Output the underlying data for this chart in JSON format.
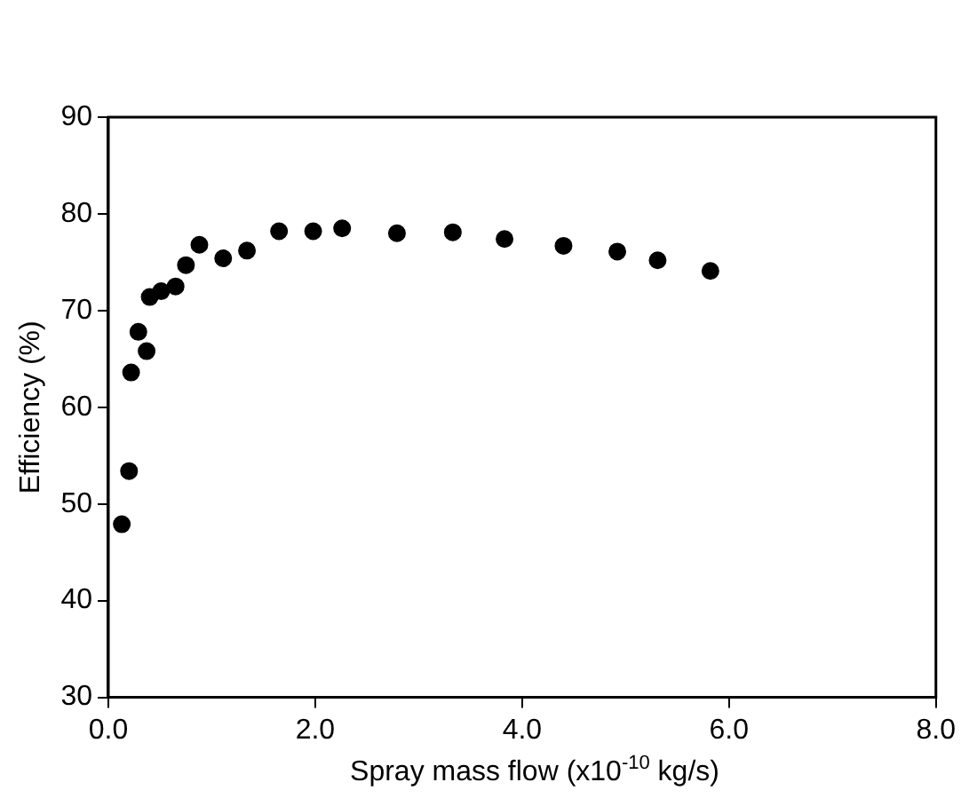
{
  "chart_data": {
    "type": "scatter",
    "xlabel": "Spray mass flow (x10$^{-10}$ kg/s)",
    "ylabel": "Efficiency (%)",
    "xlim": [
      0,
      8
    ],
    "xticks": [
      {
        "value": 0,
        "label": "0.0"
      },
      {
        "value": 2,
        "label": "2.0"
      },
      {
        "value": 4,
        "label": "4.0"
      },
      {
        "value": 6,
        "label": "6.0"
      },
      {
        "value": 8,
        "label": "8.0"
      }
    ],
    "ylim": [
      30,
      90
    ],
    "yticks": [
      30,
      40,
      50,
      60,
      70,
      80,
      90
    ],
    "grid": false,
    "legend": false,
    "marker": "circle",
    "series": [
      {
        "color": "#000000",
        "x": [
          0.13,
          0.2,
          0.22,
          0.29,
          0.37,
          0.4,
          0.51,
          0.65,
          0.75,
          0.88,
          1.11,
          1.34,
          1.65,
          1.98,
          2.26,
          2.79,
          3.33,
          3.83,
          4.4,
          4.92,
          5.31,
          5.82
        ],
        "values": [
          47.9,
          53.4,
          63.6,
          67.8,
          65.8,
          71.4,
          72.0,
          72.5,
          74.7,
          76.8,
          75.4,
          76.2,
          78.2,
          78.2,
          78.5,
          78.0,
          78.1,
          77.4,
          76.7,
          76.1,
          75.2,
          74.1
        ]
      }
    ]
  }
}
